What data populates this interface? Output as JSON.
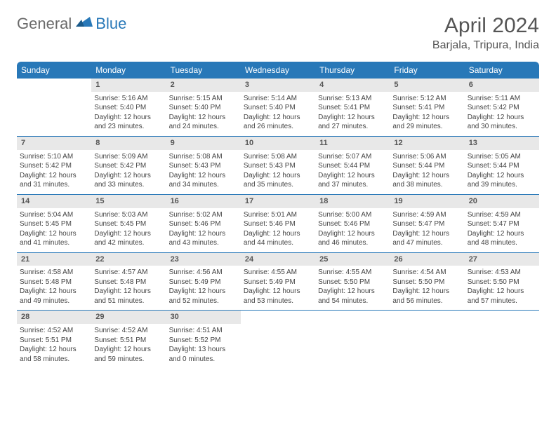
{
  "logo": {
    "textA": "General",
    "textB": "Blue"
  },
  "title": "April 2024",
  "location": "Barjala, Tripura, India",
  "colors": {
    "header_bg": "#2878b8",
    "header_text": "#ffffff",
    "daynum_bg": "#e8e8e8",
    "row_border": "#2878b8",
    "body_text": "#444444",
    "title_text": "#555555"
  },
  "weekdays": [
    "Sunday",
    "Monday",
    "Tuesday",
    "Wednesday",
    "Thursday",
    "Friday",
    "Saturday"
  ],
  "start_offset": 1,
  "days": [
    {
      "num": 1,
      "sunrise": "5:16 AM",
      "sunset": "5:40 PM",
      "daylight": "12 hours and 23 minutes."
    },
    {
      "num": 2,
      "sunrise": "5:15 AM",
      "sunset": "5:40 PM",
      "daylight": "12 hours and 24 minutes."
    },
    {
      "num": 3,
      "sunrise": "5:14 AM",
      "sunset": "5:40 PM",
      "daylight": "12 hours and 26 minutes."
    },
    {
      "num": 4,
      "sunrise": "5:13 AM",
      "sunset": "5:41 PM",
      "daylight": "12 hours and 27 minutes."
    },
    {
      "num": 5,
      "sunrise": "5:12 AM",
      "sunset": "5:41 PM",
      "daylight": "12 hours and 29 minutes."
    },
    {
      "num": 6,
      "sunrise": "5:11 AM",
      "sunset": "5:42 PM",
      "daylight": "12 hours and 30 minutes."
    },
    {
      "num": 7,
      "sunrise": "5:10 AM",
      "sunset": "5:42 PM",
      "daylight": "12 hours and 31 minutes."
    },
    {
      "num": 8,
      "sunrise": "5:09 AM",
      "sunset": "5:42 PM",
      "daylight": "12 hours and 33 minutes."
    },
    {
      "num": 9,
      "sunrise": "5:08 AM",
      "sunset": "5:43 PM",
      "daylight": "12 hours and 34 minutes."
    },
    {
      "num": 10,
      "sunrise": "5:08 AM",
      "sunset": "5:43 PM",
      "daylight": "12 hours and 35 minutes."
    },
    {
      "num": 11,
      "sunrise": "5:07 AM",
      "sunset": "5:44 PM",
      "daylight": "12 hours and 37 minutes."
    },
    {
      "num": 12,
      "sunrise": "5:06 AM",
      "sunset": "5:44 PM",
      "daylight": "12 hours and 38 minutes."
    },
    {
      "num": 13,
      "sunrise": "5:05 AM",
      "sunset": "5:44 PM",
      "daylight": "12 hours and 39 minutes."
    },
    {
      "num": 14,
      "sunrise": "5:04 AM",
      "sunset": "5:45 PM",
      "daylight": "12 hours and 41 minutes."
    },
    {
      "num": 15,
      "sunrise": "5:03 AM",
      "sunset": "5:45 PM",
      "daylight": "12 hours and 42 minutes."
    },
    {
      "num": 16,
      "sunrise": "5:02 AM",
      "sunset": "5:46 PM",
      "daylight": "12 hours and 43 minutes."
    },
    {
      "num": 17,
      "sunrise": "5:01 AM",
      "sunset": "5:46 PM",
      "daylight": "12 hours and 44 minutes."
    },
    {
      "num": 18,
      "sunrise": "5:00 AM",
      "sunset": "5:46 PM",
      "daylight": "12 hours and 46 minutes."
    },
    {
      "num": 19,
      "sunrise": "4:59 AM",
      "sunset": "5:47 PM",
      "daylight": "12 hours and 47 minutes."
    },
    {
      "num": 20,
      "sunrise": "4:59 AM",
      "sunset": "5:47 PM",
      "daylight": "12 hours and 48 minutes."
    },
    {
      "num": 21,
      "sunrise": "4:58 AM",
      "sunset": "5:48 PM",
      "daylight": "12 hours and 49 minutes."
    },
    {
      "num": 22,
      "sunrise": "4:57 AM",
      "sunset": "5:48 PM",
      "daylight": "12 hours and 51 minutes."
    },
    {
      "num": 23,
      "sunrise": "4:56 AM",
      "sunset": "5:49 PM",
      "daylight": "12 hours and 52 minutes."
    },
    {
      "num": 24,
      "sunrise": "4:55 AM",
      "sunset": "5:49 PM",
      "daylight": "12 hours and 53 minutes."
    },
    {
      "num": 25,
      "sunrise": "4:55 AM",
      "sunset": "5:50 PM",
      "daylight": "12 hours and 54 minutes."
    },
    {
      "num": 26,
      "sunrise": "4:54 AM",
      "sunset": "5:50 PM",
      "daylight": "12 hours and 56 minutes."
    },
    {
      "num": 27,
      "sunrise": "4:53 AM",
      "sunset": "5:50 PM",
      "daylight": "12 hours and 57 minutes."
    },
    {
      "num": 28,
      "sunrise": "4:52 AM",
      "sunset": "5:51 PM",
      "daylight": "12 hours and 58 minutes."
    },
    {
      "num": 29,
      "sunrise": "4:52 AM",
      "sunset": "5:51 PM",
      "daylight": "12 hours and 59 minutes."
    },
    {
      "num": 30,
      "sunrise": "4:51 AM",
      "sunset": "5:52 PM",
      "daylight": "13 hours and 0 minutes."
    }
  ],
  "labels": {
    "sunrise": "Sunrise:",
    "sunset": "Sunset:",
    "daylight": "Daylight:"
  }
}
